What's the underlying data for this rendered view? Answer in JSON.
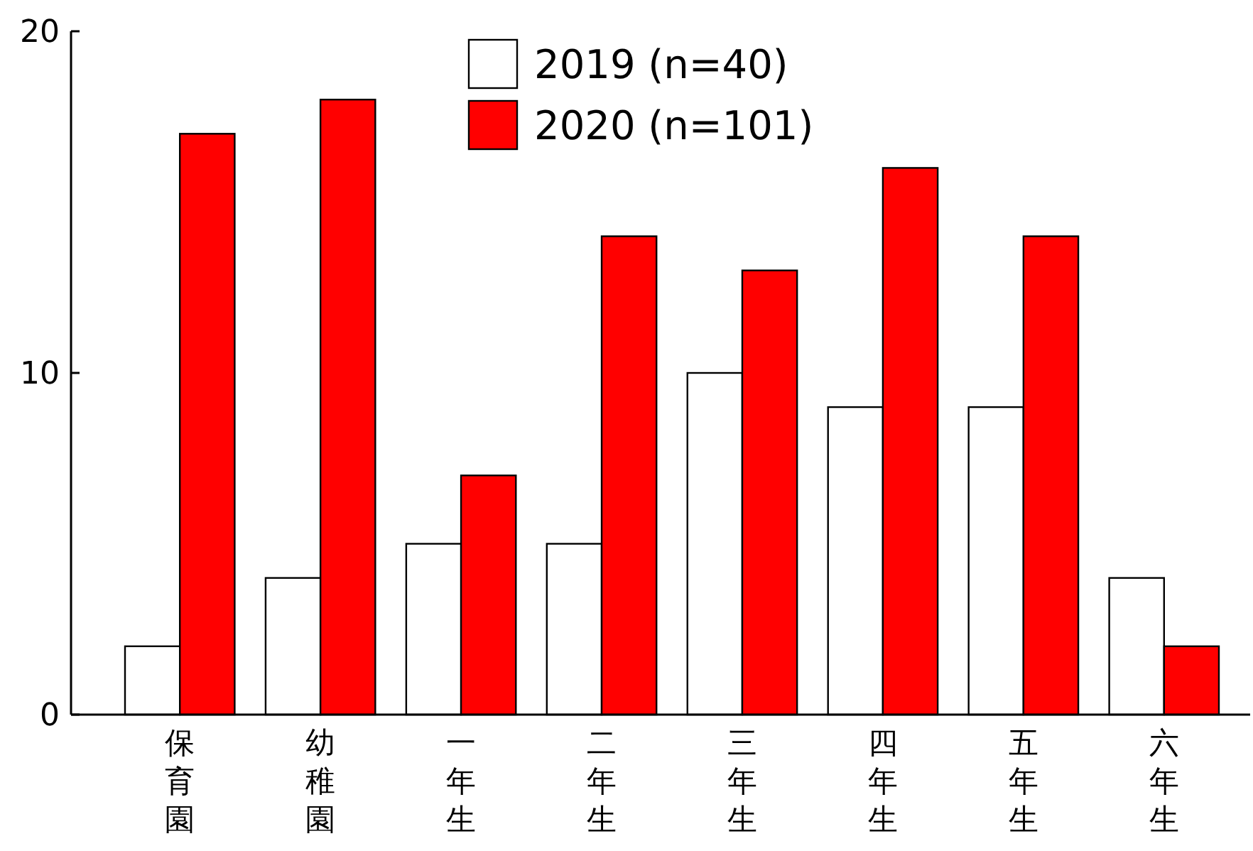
{
  "chart_data": {
    "type": "bar",
    "categories": [
      "保育園",
      "幼稚園",
      "一年生",
      "二年生",
      "三年生",
      "四年生",
      "五年生",
      "六年生"
    ],
    "series": [
      {
        "name": "2019 (n=40)",
        "color": "#ffffff",
        "values": [
          2,
          4,
          5,
          5,
          10,
          9,
          9,
          4
        ]
      },
      {
        "name": "2020 (n=101)",
        "color": "#ff0000",
        "values": [
          17,
          18,
          7,
          14,
          13,
          16,
          14,
          2
        ]
      }
    ],
    "ylim": [
      0,
      20
    ],
    "yticks": [
      0,
      10,
      20
    ],
    "grid": false,
    "legend": "top"
  }
}
